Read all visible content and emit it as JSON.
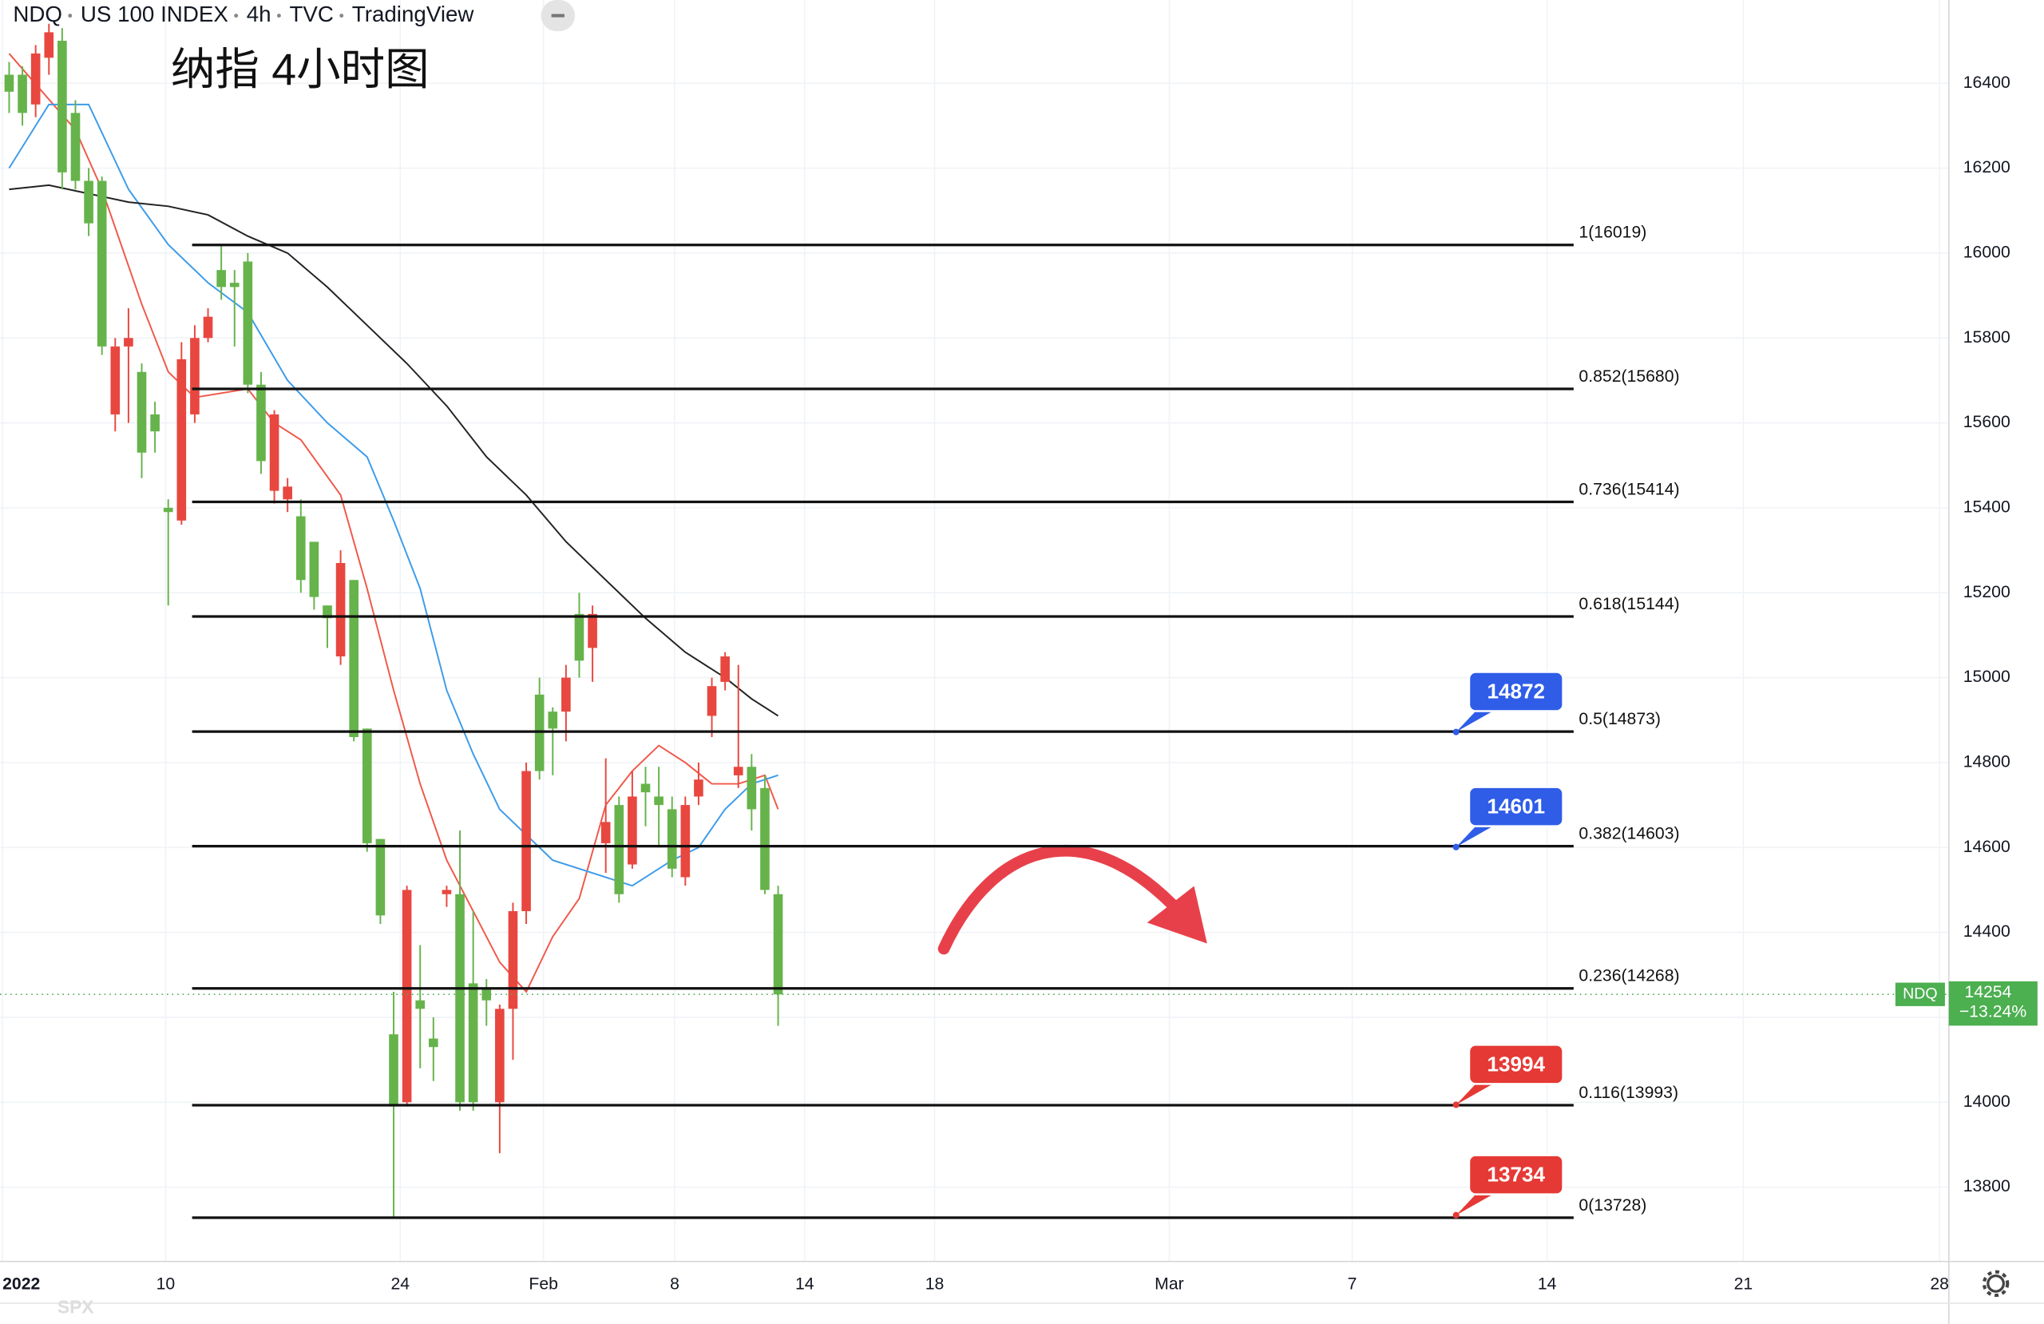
{
  "header": [
    "NDQ",
    "US 100 INDEX",
    "4h",
    "TVC",
    "TradingView"
  ],
  "chart_data": {
    "type": "candlestick",
    "title": "纳指 4小时图",
    "x": [
      0,
      1,
      2,
      3,
      4,
      5,
      6,
      7,
      8,
      9,
      10,
      11,
      12,
      13,
      14,
      15,
      16,
      17,
      18,
      19,
      20,
      21,
      22,
      23,
      24,
      25,
      26,
      27,
      28,
      29,
      30,
      31,
      32,
      33,
      34,
      35,
      36,
      37,
      38,
      39,
      40,
      41,
      42,
      43,
      44,
      45,
      46,
      47,
      48,
      49,
      50,
      51,
      52,
      53,
      54,
      55,
      56,
      57,
      58
    ],
    "series": [
      {
        "name": "NDQ",
        "up_color": "#e8473f",
        "down_color": "#66b34b",
        "open": [
          16420,
          16420,
          16350,
          16460,
          16500,
          16330,
          16170,
          16170,
          15620,
          15780,
          15720,
          15620,
          15400,
          15370,
          15620,
          15800,
          15960,
          15930,
          15980,
          15690,
          15440,
          15420,
          15380,
          15320,
          15170,
          15050,
          15230,
          14880,
          14620,
          14160,
          14000,
          14240,
          14150,
          14490,
          14490,
          14280,
          14270,
          14000,
          14220,
          14450,
          14960,
          14920,
          14920,
          15150,
          15070,
          14610,
          14700,
          14560,
          14750,
          14720,
          14690,
          14530,
          14720,
          14910,
          14990,
          14770,
          14790,
          14740,
          14490
        ],
        "high": [
          16450,
          16440,
          16490,
          16540,
          16530,
          16360,
          16200,
          16180,
          15800,
          15870,
          15740,
          15650,
          15420,
          15790,
          15830,
          15870,
          16020,
          15960,
          16000,
          15720,
          15630,
          15470,
          15420,
          15320,
          15170,
          15300,
          15230,
          14880,
          14620,
          14260,
          14510,
          14370,
          14200,
          14510,
          14640,
          14450,
          14290,
          14230,
          14470,
          14800,
          15000,
          14930,
          15030,
          15200,
          15170,
          14810,
          14720,
          14780,
          14790,
          14790,
          14720,
          14720,
          14800,
          15000,
          15060,
          15030,
          14820,
          14770,
          14510
        ],
        "low": [
          16330,
          16300,
          16320,
          16420,
          16150,
          16150,
          16040,
          15760,
          15580,
          15600,
          15470,
          15530,
          15170,
          15360,
          15600,
          15790,
          15890,
          15780,
          15670,
          15480,
          15410,
          15390,
          15200,
          15160,
          15070,
          15030,
          14850,
          14590,
          14420,
          13730,
          13990,
          14080,
          14050,
          14460,
          13980,
          13980,
          14180,
          13880,
          14100,
          14420,
          14760,
          14770,
          14850,
          15000,
          14990,
          14540,
          14470,
          14550,
          14650,
          14600,
          14530,
          14510,
          14700,
          14860,
          14970,
          14740,
          14640,
          14490,
          14180
        ],
        "close": [
          16380,
          16330,
          16470,
          16520,
          16190,
          16170,
          16070,
          15780,
          15780,
          15800,
          15530,
          15580,
          15390,
          15750,
          15800,
          15850,
          15920,
          15920,
          15690,
          15510,
          15620,
          15450,
          15230,
          15190,
          15140,
          15270,
          14860,
          14610,
          14440,
          13990,
          14500,
          14220,
          14130,
          14500,
          14000,
          14000,
          14240,
          14220,
          14450,
          14780,
          14780,
          14880,
          15000,
          15040,
          15150,
          14660,
          14490,
          14720,
          14730,
          14700,
          14550,
          14700,
          14760,
          14980,
          15050,
          14790,
          14690,
          14500,
          14254
        ]
      }
    ],
    "moving_averages": [
      {
        "color": "#f0584a",
        "x": [
          0,
          5,
          7,
          10,
          12,
          14,
          18,
          20,
          22,
          25,
          27,
          29,
          31,
          33,
          35,
          37,
          39,
          41,
          43,
          45,
          47,
          49,
          51,
          53,
          55,
          57,
          58
        ],
        "values": [
          16470,
          16290,
          16150,
          15880,
          15720,
          15660,
          15680,
          15600,
          15560,
          15430,
          15210,
          14970,
          14750,
          14570,
          14450,
          14330,
          14260,
          14390,
          14480,
          14700,
          14780,
          14840,
          14800,
          14750,
          14750,
          14770,
          14690
        ]
      },
      {
        "color": "#3d9be9",
        "x": [
          0,
          3,
          6,
          9,
          12,
          15,
          18,
          21,
          24,
          27,
          29,
          31,
          33,
          35,
          37,
          39,
          41,
          44,
          47,
          50,
          52,
          54,
          56,
          58
        ],
        "values": [
          16200,
          16350,
          16350,
          16150,
          16020,
          15930,
          15860,
          15700,
          15600,
          15520,
          15370,
          15210,
          14970,
          14820,
          14690,
          14630,
          14570,
          14540,
          14510,
          14570,
          14600,
          14690,
          14750,
          14770
        ]
      },
      {
        "color": "#222222",
        "x": [
          0,
          3,
          6,
          9,
          12,
          15,
          18,
          21,
          24,
          27,
          30,
          33,
          36,
          39,
          42,
          45,
          48,
          51,
          54,
          56,
          58
        ],
        "values": [
          16150,
          16160,
          16140,
          16120,
          16110,
          16090,
          16040,
          16000,
          15920,
          15830,
          15740,
          15640,
          15520,
          15430,
          15320,
          15230,
          15140,
          15060,
          15000,
          14950,
          14910
        ]
      }
    ],
    "fib": {
      "x": [
        13.8,
        118
      ],
      "levels": [
        {
          "value": 16019,
          "label": "1(16019)"
        },
        {
          "value": 15680,
          "label": "0.852(15680)"
        },
        {
          "value": 15414,
          "label": "0.736(15414)"
        },
        {
          "value": 15144,
          "label": "0.618(15144)"
        },
        {
          "value": 14873,
          "label": "0.5(14873)"
        },
        {
          "value": 14603,
          "label": "0.382(14603)"
        },
        {
          "value": 14268,
          "label": "0.236(14268)"
        },
        {
          "value": 13993,
          "label": "0.116(13993)"
        },
        {
          "value": 13728,
          "label": "0(13728)"
        }
      ]
    },
    "callouts": [
      {
        "value": 14872,
        "color": "#2f5de8"
      },
      {
        "value": 14601,
        "color": "#2f5de8"
      },
      {
        "value": 13994,
        "color": "#e53935"
      },
      {
        "value": 13734,
        "color": "#e53935"
      }
    ],
    "last_price": {
      "name": "NDQ",
      "value": 14254,
      "change": "−13.24%",
      "color": "#4caf50"
    },
    "xlim": [
      -0.69,
      146.3
    ],
    "xticks": [
      {
        "value": -0.5,
        "label": "2022"
      },
      {
        "value": 11.8,
        "label": "10"
      },
      {
        "value": 29.5,
        "label": "24"
      },
      {
        "value": 40.3,
        "label": "Feb"
      },
      {
        "value": 50.2,
        "label": "8"
      },
      {
        "value": 60.0,
        "label": "14"
      },
      {
        "value": 69.8,
        "label": "18"
      },
      {
        "value": 87.5,
        "label": "Mar"
      },
      {
        "value": 101.3,
        "label": "7"
      },
      {
        "value": 116.0,
        "label": "14"
      },
      {
        "value": 130.8,
        "label": "21"
      },
      {
        "value": 145.6,
        "label": "28"
      }
    ],
    "ylim": [
      13625,
      16596
    ],
    "yticks": [
      13800,
      14000,
      14200,
      14400,
      14600,
      14800,
      15000,
      15200,
      15400,
      15600,
      15800,
      16000,
      16200,
      16400
    ],
    "grid": true,
    "compare_symbol": "SPX"
  }
}
